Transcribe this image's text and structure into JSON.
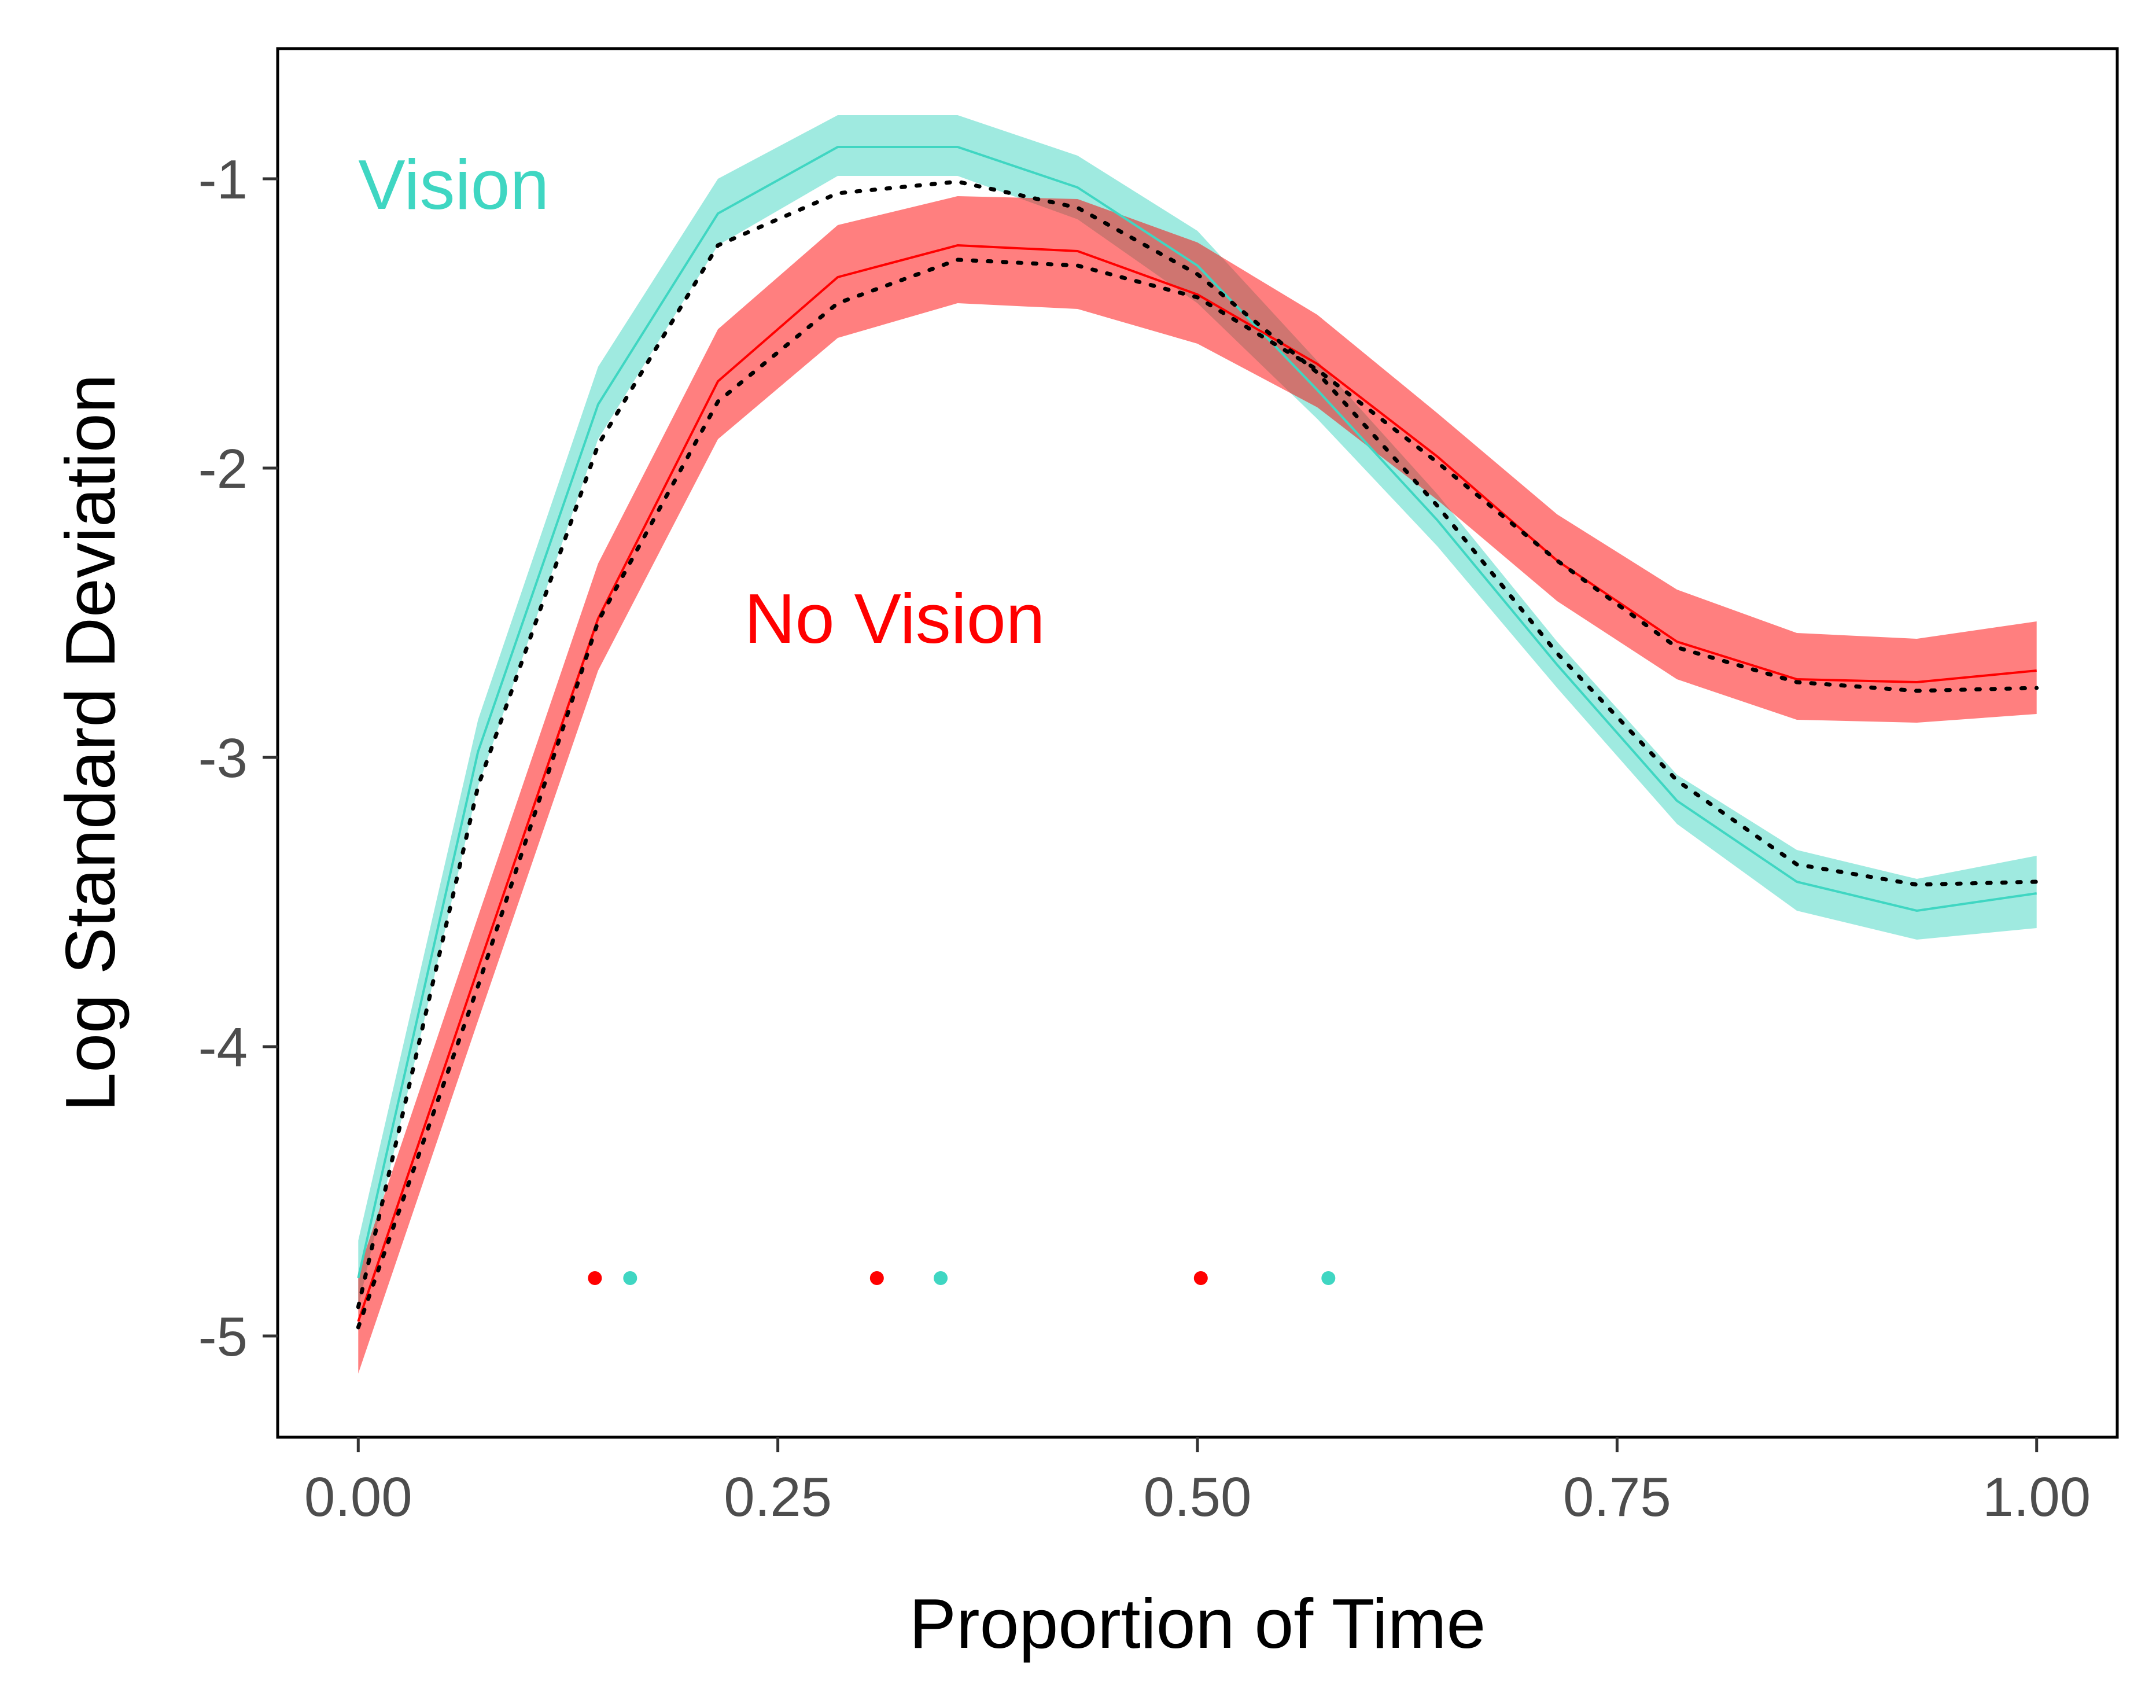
{
  "chart_data": {
    "type": "line",
    "title": "",
    "xlabel": "Proportion of Time",
    "ylabel": "Log Standard Deviation",
    "xlim": [
      -0.048,
      1.048
    ],
    "ylim": [
      -5.35,
      -0.55
    ],
    "x_ticks": [
      {
        "value": 0.0,
        "label": "0.00"
      },
      {
        "value": 0.25,
        "label": "0.25"
      },
      {
        "value": 0.5,
        "label": "0.50"
      },
      {
        "value": 0.75,
        "label": "0.75"
      },
      {
        "value": 1.0,
        "label": "1.00"
      }
    ],
    "y_ticks": [
      {
        "value": -1,
        "label": "-1"
      },
      {
        "value": -2,
        "label": "-2"
      },
      {
        "value": -3,
        "label": "-3"
      },
      {
        "value": -4,
        "label": "-4"
      },
      {
        "value": -5,
        "label": "-5"
      }
    ],
    "grid": false,
    "legend": "none",
    "x": [
      0.0,
      0.0714,
      0.1429,
      0.2143,
      0.2857,
      0.3571,
      0.4286,
      0.5,
      0.5714,
      0.6429,
      0.7143,
      0.7857,
      0.8571,
      0.9286,
      1.0
    ],
    "series": [
      {
        "name": "Vision",
        "color": "#3fd6c2",
        "values": [
          -4.8,
          -2.98,
          -1.78,
          -1.12,
          -0.89,
          -0.89,
          -1.03,
          -1.3,
          -1.73,
          -2.18,
          -2.68,
          -3.15,
          -3.43,
          -3.53,
          -3.47
        ],
        "lower": [
          -4.9,
          -3.1,
          -1.9,
          -1.23,
          -0.99,
          -0.99,
          -1.14,
          -1.43,
          -1.83,
          -2.27,
          -2.76,
          -3.23,
          -3.53,
          -3.63,
          -3.59
        ],
        "upper": [
          -4.67,
          -2.87,
          -1.65,
          -1.0,
          -0.78,
          -0.78,
          -0.92,
          -1.18,
          -1.63,
          -2.09,
          -2.6,
          -3.06,
          -3.32,
          -3.42,
          -3.34
        ]
      },
      {
        "name": "No Vision",
        "color": "#ff0000",
        "values": [
          -4.95,
          -3.73,
          -2.52,
          -1.7,
          -1.34,
          -1.23,
          -1.25,
          -1.4,
          -1.64,
          -1.96,
          -2.32,
          -2.6,
          -2.73,
          -2.74,
          -2.7
        ],
        "lower": [
          -5.13,
          -3.91,
          -2.7,
          -1.9,
          -1.55,
          -1.43,
          -1.45,
          -1.57,
          -1.79,
          -2.11,
          -2.46,
          -2.73,
          -2.87,
          -2.88,
          -2.85
        ],
        "upper": [
          -4.78,
          -3.55,
          -2.33,
          -1.52,
          -1.16,
          -1.06,
          -1.07,
          -1.22,
          -1.47,
          -1.81,
          -2.16,
          -2.42,
          -2.57,
          -2.59,
          -2.53
        ]
      },
      {
        "name": "",
        "color": "#000000",
        "style": "dotted",
        "values": [
          -4.9,
          -3.1,
          -1.92,
          -1.23,
          -1.05,
          -1.01,
          -1.1,
          -1.33,
          -1.67,
          -2.13,
          -2.64,
          -3.08,
          -3.37,
          -3.44,
          -3.43
        ]
      },
      {
        "name": "",
        "color": "#000000",
        "style": "dotted",
        "values": [
          -4.97,
          -3.79,
          -2.53,
          -1.77,
          -1.43,
          -1.28,
          -1.3,
          -1.41,
          -1.66,
          -1.98,
          -2.32,
          -2.62,
          -2.74,
          -2.77,
          -2.76
        ]
      }
    ],
    "markers": [
      {
        "x": 0.141,
        "y": -4.8,
        "color": "#ff0000"
      },
      {
        "x": 0.162,
        "y": -4.8,
        "color": "#3fd6c2"
      },
      {
        "x": 0.309,
        "y": -4.8,
        "color": "#ff0000"
      },
      {
        "x": 0.347,
        "y": -4.8,
        "color": "#3fd6c2"
      },
      {
        "x": 0.502,
        "y": -4.8,
        "color": "#ff0000"
      },
      {
        "x": 0.578,
        "y": -4.8,
        "color": "#3fd6c2"
      }
    ],
    "annotations": [
      {
        "name": "vision-annotation",
        "text": "Vision",
        "x": 0.0,
        "y": -1.02,
        "color": "#3fd6c2"
      },
      {
        "name": "no-vision-annotation",
        "text": "No Vision",
        "x": 0.23,
        "y": -2.52,
        "color": "#ff0000"
      }
    ]
  }
}
